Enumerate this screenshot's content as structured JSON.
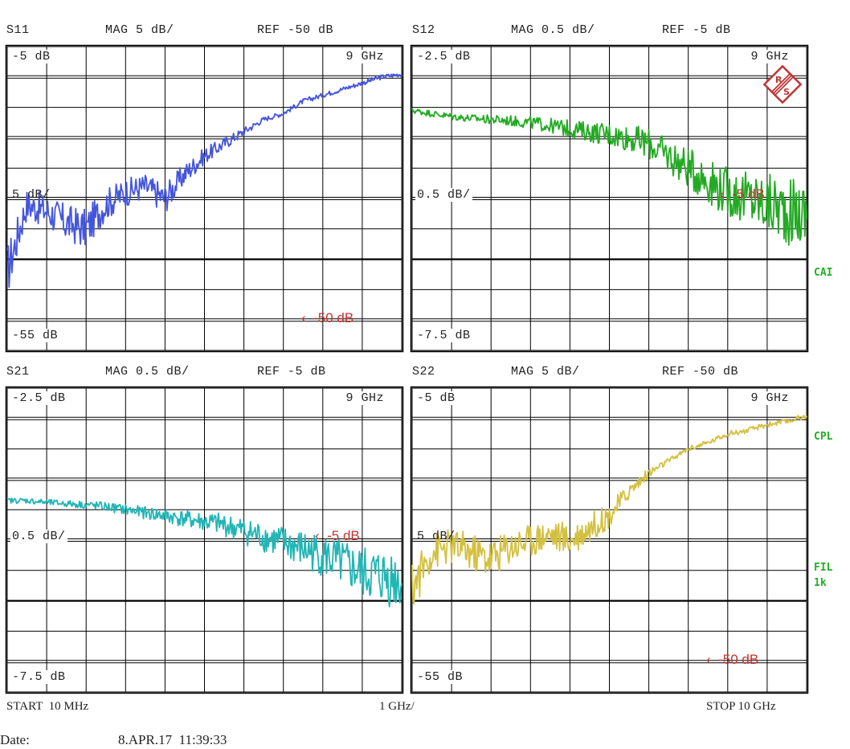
{
  "panels": [
    {
      "id": "s11",
      "param": "S11",
      "mag_label": "MAG 5 dB/",
      "ref_label": "REF -50 dB",
      "top_label": "-5 dB",
      "bottom_label": "-55 dB",
      "freq_label": "9 GHz",
      "div_label": "5 dB/",
      "ref_marker": "‹  -50 dB",
      "trace_color": "#4455dd"
    },
    {
      "id": "s12",
      "param": "S12",
      "mag_label": "MAG 0.5 dB/",
      "ref_label": "REF -5 dB",
      "top_label": "-2.5 dB",
      "bottom_label": "-7.5 dB",
      "freq_label": "9 GHz",
      "div_label": "0.5 dB/",
      "ref_marker": "‹  -5 dB",
      "trace_color": "#22aa22"
    },
    {
      "id": "s21",
      "param": "S21",
      "mag_label": "MAG 0.5 dB/",
      "ref_label": "REF -5 dB",
      "top_label": "-2.5 dB",
      "bottom_label": "-7.5 dB",
      "freq_label": "9 GHz",
      "div_label": "0.5 dB/",
      "ref_marker": "‹  -5 dB",
      "trace_color": "#22b5b5"
    },
    {
      "id": "s22",
      "param": "S22",
      "mag_label": "MAG 5 dB/",
      "ref_label": "REF -50 dB",
      "top_label": "-5 dB",
      "bottom_label": "-55 dB",
      "freq_label": "9 GHz",
      "div_label": "5 dB/",
      "ref_marker": "‹  -50 dB",
      "trace_color": "#d4c040"
    }
  ],
  "side_labels": {
    "cal": "CAI",
    "cpl": "CPL",
    "fil": "FIL",
    "fil_bw": "1k"
  },
  "footer": {
    "start": "START  10 MHz",
    "span": "1 GHz/",
    "stop": "STOP 10 GHz",
    "date_label": "Date:",
    "date_value": "8.APR.17  11:39:33"
  },
  "logo": {
    "name": "rohde-schwarz-logo",
    "color": "#c03535"
  },
  "chart_data": [
    {
      "type": "line",
      "title": "S11",
      "xlabel": "Frequency (START 10 MHz, 1 GHz/div, STOP 10 GHz)",
      "ylabel": "MAG dB",
      "xlim": [
        0.01,
        10
      ],
      "ylim": [
        -55,
        -5
      ],
      "grid": true,
      "y_div": 5,
      "ref": -50,
      "x": [
        0.01,
        0.5,
        1,
        1.5,
        2,
        2.5,
        3,
        3.5,
        4,
        4.5,
        5,
        5.5,
        6,
        6.5,
        7,
        7.5,
        8,
        8.5,
        9,
        9.5,
        10
      ],
      "values": [
        -42,
        -31,
        -32,
        -34,
        -35,
        -31,
        -29,
        -28,
        -30,
        -26,
        -23,
        -21,
        -19,
        -17,
        -16,
        -14,
        -13,
        -12,
        -11,
        -10,
        -9.5
      ],
      "noise": 5
    },
    {
      "type": "line",
      "title": "S12",
      "xlabel": "Frequency (START 10 MHz, 1 GHz/div, STOP 10 GHz)",
      "ylabel": "MAG dB",
      "xlim": [
        0.01,
        10
      ],
      "ylim": [
        -7.5,
        -2.5
      ],
      "grid": true,
      "y_div": 0.5,
      "ref": -5,
      "x": [
        0.01,
        0.5,
        1,
        1.5,
        2,
        2.5,
        3,
        3.5,
        4,
        4.5,
        5,
        5.5,
        6,
        6.5,
        7,
        7.5,
        8,
        8.5,
        9,
        9.5,
        10
      ],
      "values": [
        -3.55,
        -3.6,
        -3.65,
        -3.68,
        -3.7,
        -3.72,
        -3.75,
        -3.8,
        -3.85,
        -3.9,
        -3.95,
        -4.0,
        -4.1,
        -4.3,
        -4.5,
        -4.7,
        -4.9,
        -5.0,
        -5.1,
        -5.2,
        -5.3
      ],
      "noise": 0.35
    },
    {
      "type": "line",
      "title": "S21",
      "xlabel": "Frequency (START 10 MHz, 1 GHz/div, STOP 10 GHz)",
      "ylabel": "MAG dB",
      "xlim": [
        0.01,
        10
      ],
      "ylim": [
        -7.5,
        -2.5
      ],
      "grid": true,
      "y_div": 0.5,
      "ref": -5,
      "x": [
        0.01,
        0.5,
        1,
        1.5,
        2,
        2.5,
        3,
        3.5,
        4,
        4.5,
        5,
        5.5,
        6,
        6.5,
        7,
        7.5,
        8,
        8.5,
        9,
        9.5,
        10
      ],
      "values": [
        -4.35,
        -4.35,
        -4.38,
        -4.4,
        -4.42,
        -4.45,
        -4.5,
        -4.55,
        -4.6,
        -4.65,
        -4.7,
        -4.75,
        -4.85,
        -4.95,
        -5.05,
        -5.15,
        -5.25,
        -5.4,
        -5.55,
        -5.6,
        -5.65
      ],
      "noise": 0.3
    },
    {
      "type": "line",
      "title": "S22",
      "xlabel": "Frequency (START 10 MHz, 1 GHz/div, STOP 10 GHz)",
      "ylabel": "MAG dB",
      "xlim": [
        0.01,
        10
      ],
      "ylim": [
        -55,
        -5
      ],
      "grid": true,
      "y_div": 5,
      "ref": -50,
      "x": [
        0.01,
        0.5,
        1,
        1.5,
        2,
        2.5,
        3,
        3.5,
        4,
        4.5,
        5,
        5.5,
        6,
        6.5,
        7,
        7.5,
        8,
        8.5,
        9,
        9.5,
        10
      ],
      "values": [
        -38,
        -32,
        -31,
        -32,
        -33,
        -31,
        -30,
        -29,
        -30,
        -28,
        -26,
        -22,
        -19,
        -17,
        -15,
        -14,
        -12.5,
        -12,
        -11,
        -10.5,
        -9.5
      ],
      "noise": 5.5
    }
  ]
}
